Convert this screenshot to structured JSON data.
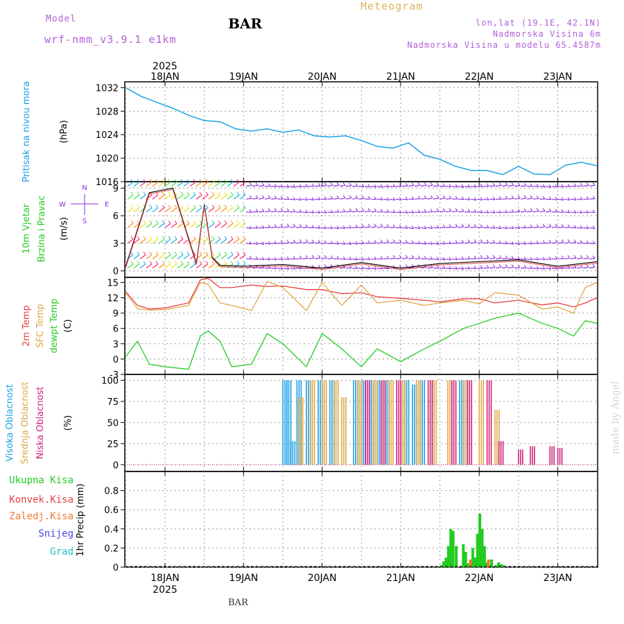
{
  "header": {
    "model_label": "Model",
    "model_version": "wrf-nmm_v3.9.1  e1km",
    "station": "BAR",
    "meteogram_label": "Meteogram",
    "lonlat": "lon,lat (19.1E, 42.1N)",
    "altitude": "Nadmorska Visina 6m",
    "model_altitude": "Nadmorska Visina u modelu 65.4587m",
    "footer_station": "BAR",
    "watermark": "made by Angel"
  },
  "axis": {
    "year_top": "2025",
    "year_bottom": "2025",
    "days": [
      "18JAN",
      "19JAN",
      "20JAN",
      "21JAN",
      "22JAN",
      "23JAN"
    ]
  },
  "colors": {
    "pressure": "#1aa0e6",
    "temp2m": "#e64040",
    "sfctemp": "#dfa945",
    "dewpt": "#22cc22",
    "high_cloud": "#1aa0e6",
    "mid_cloud": "#dfa945",
    "low_cloud": "#d0207a",
    "wind_barb": "#8a2be2",
    "precip_total": "#22cc22",
    "precip_conv": "#e64040",
    "precip_frozen": "#f07a30",
    "snow": "#4a4ae0",
    "hail": "#22c0c0"
  },
  "chart_data": [
    {
      "type": "line",
      "ylabel": [
        "Pritisak na nivou mora",
        "(hPa)"
      ],
      "ylim": [
        1016,
        1033
      ],
      "yticks": [
        1016,
        1020,
        1024,
        1028,
        1032
      ],
      "x_days": [
        0.0,
        0.2,
        0.4,
        0.6,
        0.8,
        1.0,
        1.2,
        1.4,
        1.6,
        1.8,
        2.0,
        2.2,
        2.4,
        2.6,
        2.8,
        3.0,
        3.2,
        3.4,
        3.6,
        3.8,
        4.0,
        4.2,
        4.4,
        4.6,
        4.8,
        5.0,
        5.2,
        5.4,
        5.6,
        5.8,
        6.0
      ],
      "series": [
        {
          "values": [
            1032,
            1030.5,
            1029.5,
            1028.5,
            1027.3,
            1026.4,
            1026.2,
            1025,
            1024.6,
            1025,
            1024.4,
            1024.8,
            1023.8,
            1023.6,
            1023.8,
            1023,
            1022,
            1021.7,
            1022.6,
            1020.5,
            1019.8,
            1018.6,
            1017.9,
            1017.9,
            1017.2,
            1018.6,
            1017.3,
            1017.2,
            1018.8,
            1019.3,
            1018.7
          ]
        }
      ]
    },
    {
      "type": "line",
      "ylabel": [
        "10m Vjetar",
        "Brzina i Pravac",
        "(m/s)"
      ],
      "compass": [
        "N",
        "W",
        "E",
        "S"
      ],
      "ylim": [
        -0.7,
        9.7
      ],
      "yticks": [
        0,
        3,
        6,
        9
      ],
      "x_days": [
        0.0,
        0.3,
        0.6,
        0.9,
        1.0,
        1.1,
        1.2,
        1.5,
        2.0,
        2.5,
        3.0,
        3.5,
        4.0,
        4.5,
        5.0,
        5.5,
        6.0
      ],
      "series": [
        {
          "values": [
            0.5,
            8.5,
            9.0,
            0.8,
            7.2,
            1.5,
            0.6,
            0.5,
            0.7,
            0.3,
            0.9,
            0.3,
            0.8,
            1.0,
            1.2,
            0.5,
            1.0
          ]
        }
      ],
      "barb_rows": [
        0.3,
        1.3,
        3.0,
        4.7,
        6.4,
        7.8,
        9.2
      ]
    },
    {
      "type": "line",
      "ylabel": [
        "2m Temp",
        "SFC Temp",
        "dewpt Temp",
        "(C)"
      ],
      "ylim": [
        -3,
        16
      ],
      "yticks": [
        -3,
        0,
        3,
        6,
        9,
        12,
        15
      ],
      "x_days": [
        0.0,
        0.15,
        0.3,
        0.5,
        0.8,
        0.95,
        1.05,
        1.2,
        1.35,
        1.6,
        1.8,
        2.0,
        2.3,
        2.5,
        2.75,
        3.0,
        3.2,
        3.5,
        3.8,
        4.0,
        4.3,
        4.5,
        4.7,
        5.0,
        5.3,
        5.5,
        5.7,
        5.85,
        6.0
      ],
      "series": [
        {
          "name": "2m Temp",
          "values": [
            13.2,
            10.5,
            9.8,
            10.0,
            11.0,
            15.5,
            15.8,
            14.0,
            14.0,
            14.5,
            14.2,
            14.3,
            13.6,
            13.6,
            12.8,
            13.0,
            12.2,
            11.9,
            11.5,
            11.2,
            11.8,
            11.8,
            11.0,
            11.5,
            10.6,
            11.0,
            10.2,
            11.0,
            12.0
          ]
        },
        {
          "name": "SFC Temp",
          "values": [
            13.0,
            9.8,
            9.6,
            9.7,
            10.5,
            15.0,
            14.6,
            11.0,
            10.5,
            9.5,
            15.2,
            14.0,
            9.5,
            15.0,
            10.5,
            14.5,
            11.0,
            11.5,
            10.5,
            11.0,
            11.5,
            10.8,
            13.0,
            12.5,
            9.8,
            10.2,
            9.0,
            14.0,
            15.0
          ]
        },
        {
          "name": "dewpt Temp",
          "values": [
            0.5,
            3.5,
            -1.0,
            -1.5,
            -2.0,
            4.5,
            5.5,
            3.5,
            -1.5,
            -1.0,
            5.0,
            3.0,
            -1.5,
            5.0,
            2.0,
            -1.5,
            2.0,
            -0.5,
            2.0,
            3.5,
            6.0,
            7.0,
            8.0,
            9.0,
            7.0,
            6.0,
            4.5,
            7.5,
            7.0
          ]
        }
      ]
    },
    {
      "type": "bar",
      "ylabel": [
        "Visoka Oblacnost",
        "Srednja Oblacnost",
        "Niska Oblacnost",
        "(%)"
      ],
      "ylim": [
        -8,
        107
      ],
      "yticks": [
        0,
        25,
        50,
        75,
        100
      ],
      "series": [
        {
          "name": "Visoka Oblacnost",
          "x_days": [
            2.0,
            2.05,
            2.1,
            2.18,
            2.3,
            2.45,
            2.6,
            2.9,
            3.0,
            3.1,
            3.2,
            3.3,
            3.55,
            3.65,
            3.75,
            4.25
          ],
          "values": [
            100,
            100,
            28,
            100,
            100,
            100,
            100,
            100,
            100,
            100,
            100,
            100,
            100,
            95,
            100,
            100
          ]
        },
        {
          "name": "Srednja Oblacnost",
          "x_days": [
            2.2,
            2.35,
            2.5,
            2.65,
            2.75,
            2.95,
            3.15,
            3.35,
            3.5,
            3.7,
            3.9,
            4.1,
            4.3,
            4.5,
            4.7
          ],
          "values": [
            80,
            100,
            100,
            100,
            80,
            100,
            100,
            100,
            100,
            100,
            100,
            100,
            100,
            100,
            65
          ]
        },
        {
          "name": "Niska Oblacnost",
          "x_days": [
            3.05,
            3.25,
            3.45,
            3.85,
            4.15,
            4.35,
            4.6,
            4.75,
            5.0,
            5.15,
            5.4,
            5.5
          ],
          "values": [
            100,
            100,
            100,
            100,
            100,
            100,
            100,
            28,
            18,
            22,
            22,
            20
          ]
        }
      ]
    },
    {
      "type": "bar",
      "ylabel": [
        "1hr Precip (mm)"
      ],
      "legend": [
        "Ukupna Kisa",
        "Konvek.Kisa",
        "Zaledj.Kisa",
        "Snijeg",
        "Grad"
      ],
      "ylim": [
        0,
        1.0
      ],
      "yticks": [
        0,
        0.2,
        0.4,
        0.6,
        0.8
      ],
      "series": [
        {
          "name": "Ukupna Kisa",
          "x_days": [
            4.0,
            4.03,
            4.06,
            4.09,
            4.12,
            4.15,
            4.19,
            4.28,
            4.31,
            4.34,
            4.37,
            4.4,
            4.43,
            4.46,
            4.49,
            4.52,
            4.55,
            4.58,
            4.61,
            4.64,
            4.7,
            4.73,
            4.76,
            4.79
          ],
          "values": [
            0.02,
            0.06,
            0.1,
            0.22,
            0.4,
            0.38,
            0.22,
            0.24,
            0.16,
            0.04,
            0.06,
            0.2,
            0.1,
            0.35,
            0.56,
            0.4,
            0.22,
            0.05,
            0.02,
            0.08,
            0.02,
            0.05,
            0.03,
            0.02
          ]
        },
        {
          "name": "Zaledj.Kisa",
          "x_days": [
            4.37,
            4.6
          ],
          "values": [
            0.08,
            0.08
          ]
        }
      ]
    }
  ]
}
